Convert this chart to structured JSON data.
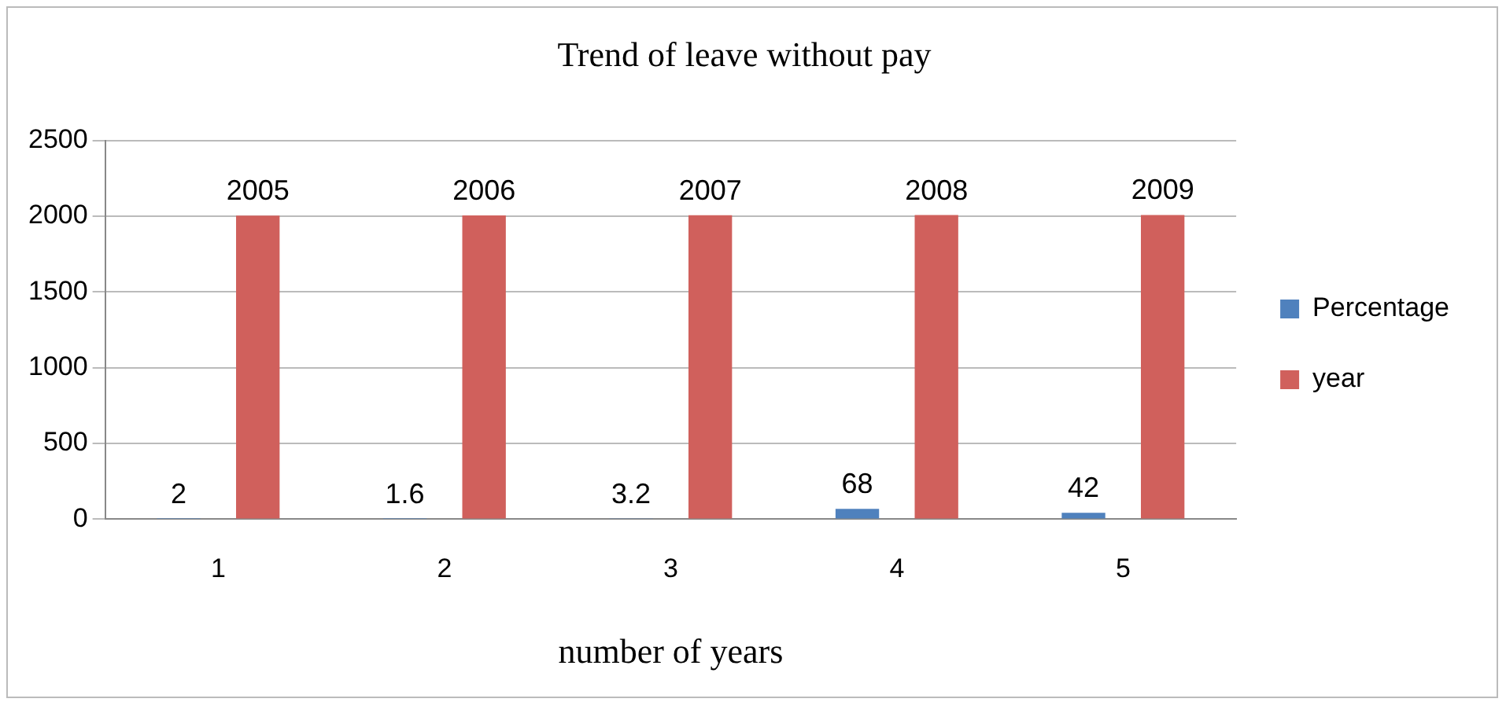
{
  "chart_data": {
    "type": "bar",
    "title": "Trend of leave without pay",
    "xlabel": "number of years",
    "categories": [
      "1",
      "2",
      "3",
      "4",
      "5"
    ],
    "series": [
      {
        "name": "Percentage",
        "color": "#4f81bd",
        "values": [
          2,
          1.6,
          3.2,
          68,
          42
        ]
      },
      {
        "name": "year",
        "color": "#d0605c",
        "values": [
          2005,
          2006,
          2007,
          2008,
          2009
        ]
      }
    ],
    "ylim": [
      0,
      2500
    ],
    "yticks": [
      0,
      500,
      1000,
      1500,
      2000,
      2500
    ],
    "grid": "y",
    "legend": "right",
    "data_labels": true
  }
}
